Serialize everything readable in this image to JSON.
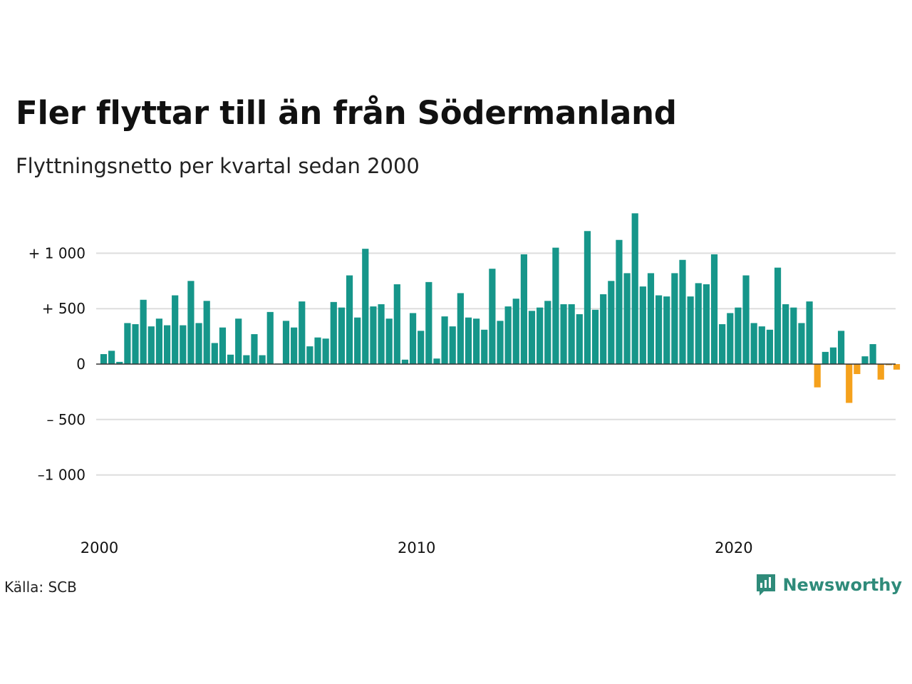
{
  "title": "Fler flyttar till än från Södermanland",
  "subtitle": "Flyttningsnetto per kvartal sedan 2000",
  "source": "Källa: SCB",
  "brand": {
    "name": "Newsworthy",
    "icon": "newsworthy-logo-icon"
  },
  "colors": {
    "positive": "#16968a",
    "negative": "#f5a11c",
    "grid": "#dddddd",
    "baseline": "#333333"
  },
  "chart_data": {
    "type": "bar",
    "xlabel": "",
    "ylabel": "",
    "grid": true,
    "ylim": [
      -1200,
      1400
    ],
    "y_ticks": [
      {
        "value": 1000,
        "label": "+ 1 000"
      },
      {
        "value": 500,
        "label": "+   500"
      },
      {
        "value": 0,
        "label": "0"
      },
      {
        "value": -500,
        "label": "–  500"
      },
      {
        "value": -1000,
        "label": "–1 000"
      }
    ],
    "x_ticks": [
      {
        "year": 2000,
        "label": "2000"
      },
      {
        "year": 2010,
        "label": "2010"
      },
      {
        "year": 2020,
        "label": "2020"
      }
    ],
    "categories": [
      "2000K1",
      "2000K2",
      "2000K3",
      "2000K4",
      "2001K1",
      "2001K2",
      "2001K3",
      "2001K4",
      "2002K1",
      "2002K2",
      "2002K3",
      "2002K4",
      "2003K1",
      "2003K2",
      "2003K3",
      "2003K4",
      "2004K1",
      "2004K2",
      "2004K3",
      "2004K4",
      "2005K1",
      "2005K2",
      "2005K3",
      "2005K4",
      "2006K1",
      "2006K2",
      "2006K3",
      "2006K4",
      "2007K1",
      "2007K2",
      "2007K3",
      "2007K4",
      "2008K1",
      "2008K2",
      "2008K3",
      "2008K4",
      "2009K1",
      "2009K2",
      "2009K3",
      "2009K4",
      "2010K1",
      "2010K2",
      "2010K3",
      "2010K4",
      "2011K1",
      "2011K2",
      "2011K3",
      "2011K4",
      "2012K1",
      "2012K2",
      "2012K3",
      "2012K4",
      "2013K1",
      "2013K2",
      "2013K3",
      "2013K4",
      "2014K1",
      "2014K2",
      "2014K3",
      "2014K4",
      "2015K1",
      "2015K2",
      "2015K3",
      "2015K4",
      "2016K1",
      "2016K2",
      "2016K3",
      "2016K4",
      "2017K1",
      "2017K2",
      "2017K3",
      "2017K4",
      "2018K1",
      "2018K2",
      "2018K3",
      "2018K4",
      "2019K1",
      "2019K2",
      "2019K3",
      "2019K4",
      "2020K1",
      "2020K2",
      "2020K3",
      "2020K4",
      "2021K1",
      "2021K2",
      "2021K3",
      "2021K4",
      "2022K1",
      "2022K2",
      "2022K3",
      "2022K4",
      "2023K1",
      "2023K2",
      "2023K3",
      "2023K4",
      "2024K1",
      "2024K2",
      "2024K3",
      "2024K4",
      "2025K1"
    ],
    "values": [
      90,
      120,
      20,
      370,
      360,
      580,
      340,
      410,
      350,
      620,
      350,
      750,
      370,
      570,
      190,
      330,
      85,
      410,
      80,
      270,
      80,
      470,
      5,
      390,
      330,
      565,
      160,
      240,
      230,
      560,
      510,
      800,
      420,
      1040,
      520,
      540,
      410,
      720,
      40,
      460,
      300,
      740,
      50,
      430,
      340,
      640,
      420,
      410,
      310,
      860,
      390,
      520,
      590,
      990,
      480,
      510,
      570,
      1050,
      540,
      540,
      450,
      1200,
      490,
      630,
      750,
      1120,
      820,
      1360,
      700,
      820,
      620,
      610,
      820,
      940,
      610,
      730,
      720,
      990,
      360,
      460,
      510,
      800,
      370,
      340,
      310,
      870,
      540,
      510,
      370,
      565,
      -210,
      110,
      150,
      300,
      -350,
      -90,
      70,
      180,
      -140,
      -10,
      -50
    ]
  }
}
